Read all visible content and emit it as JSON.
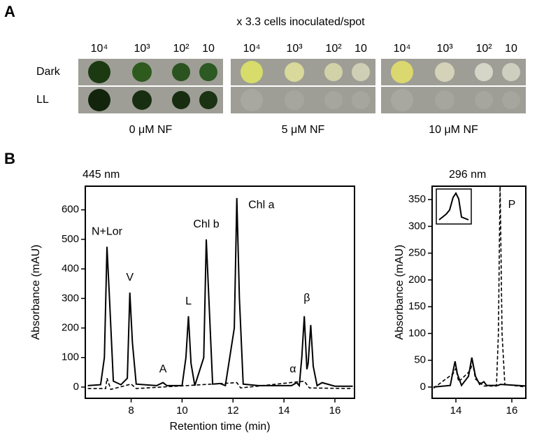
{
  "panel_a": {
    "label": "A",
    "title": "x 3.3 cells inoculated/spot",
    "columns": [
      "10⁴",
      "10³",
      "10²",
      "10"
    ],
    "rows": [
      "Dark",
      "LL"
    ],
    "conditions": [
      "0 μM NF",
      "5 μM NF",
      "10 μM NF"
    ]
  },
  "panel_b": {
    "label": "B"
  },
  "chart_data": [
    {
      "type": "line",
      "title": "445 nm",
      "x_label": "Retention time (min)",
      "y_label": "Absorbance (mAU)",
      "xlim": [
        6.2,
        16.77
      ],
      "ylim": [
        -38,
        680
      ],
      "xticks": [
        8,
        10,
        12,
        14,
        16
      ],
      "yticks": [
        0,
        100,
        200,
        300,
        400,
        500,
        600
      ],
      "annotations": [
        "N+Lor",
        "V",
        "A",
        "L",
        "Chl b",
        "Chl a",
        "α",
        "β"
      ],
      "series": [
        {
          "color": "#000000",
          "dashed": false,
          "x": [
            6.3,
            6.8,
            6.95,
            7.05,
            7.15,
            7.3,
            7.6,
            7.85,
            7.95,
            8.05,
            8.2,
            9.0,
            9.25,
            9.4,
            10.0,
            10.15,
            10.25,
            10.35,
            10.5,
            10.85,
            10.95,
            11.05,
            11.2,
            11.5,
            11.7,
            12.05,
            12.15,
            12.25,
            12.4,
            13.0,
            14.3,
            14.5,
            14.6,
            14.7,
            14.8,
            14.9,
            14.95,
            15.05,
            15.15,
            15.3,
            15.5,
            16.0,
            16.7
          ],
          "values": [
            5,
            8,
            100,
            475,
            300,
            20,
            8,
            30,
            320,
            150,
            10,
            5,
            15,
            5,
            5,
            100,
            240,
            80,
            5,
            100,
            500,
            300,
            10,
            12,
            5,
            200,
            640,
            300,
            10,
            5,
            5,
            15,
            5,
            100,
            240,
            60,
            80,
            210,
            70,
            5,
            15,
            3,
            3
          ]
        },
        {
          "color": "#000000",
          "dashed": true,
          "x": [
            6.3,
            7.0,
            7.05,
            7.2,
            8.0,
            8.2,
            12.15,
            12.3,
            14.8,
            15.0,
            16.7
          ],
          "values": [
            -5,
            -5,
            30,
            -8,
            10,
            -5,
            15,
            -3,
            20,
            -3,
            -5
          ]
        }
      ]
    },
    {
      "type": "line",
      "title": "296 nm",
      "y_label": "Absorbance (mAU)",
      "xlim": [
        13.15,
        16.5
      ],
      "ylim": [
        -21,
        375
      ],
      "xticks": [
        14,
        16
      ],
      "yticks": [
        0,
        50,
        100,
        150,
        200,
        250,
        300,
        350
      ],
      "annotations": [
        "P"
      ],
      "series": [
        {
          "color": "#000000",
          "dashed": false,
          "x": [
            13.2,
            13.8,
            13.9,
            13.97,
            14.05,
            14.2,
            14.45,
            14.57,
            14.7,
            14.85,
            15.0,
            15.1,
            15.5,
            15.6,
            16.5
          ],
          "values": [
            0,
            3,
            30,
            48,
            25,
            3,
            20,
            55,
            20,
            5,
            10,
            3,
            3,
            5,
            2
          ]
        },
        {
          "color": "#000000",
          "dashed": true,
          "x": [
            13.2,
            13.9,
            14.0,
            14.1,
            14.5,
            14.6,
            14.7,
            15.0,
            15.45,
            15.52,
            15.58,
            15.65,
            15.75,
            16.5
          ],
          "values": [
            -2,
            25,
            35,
            10,
            30,
            45,
            15,
            2,
            2,
            100,
            380,
            100,
            5,
            0
          ]
        }
      ]
    }
  ]
}
